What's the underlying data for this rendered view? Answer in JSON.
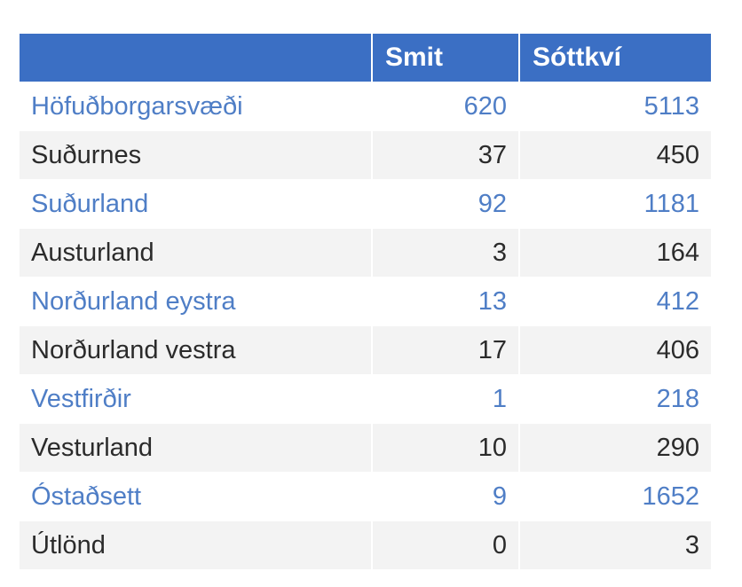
{
  "chart_data": {
    "type": "table",
    "columns": [
      "",
      "Smit",
      "Sóttkví"
    ],
    "rows": [
      {
        "region": "Höfuðborgarsvæði",
        "smit": 620,
        "sottkvi": 5113
      },
      {
        "region": "Suðurnes",
        "smit": 37,
        "sottkvi": 450
      },
      {
        "region": "Suðurland",
        "smit": 92,
        "sottkvi": 1181
      },
      {
        "region": "Austurland",
        "smit": 3,
        "sottkvi": 164
      },
      {
        "region": "Norðurland eystra",
        "smit": 13,
        "sottkvi": 412
      },
      {
        "region": "Norðurland vestra",
        "smit": 17,
        "sottkvi": 406
      },
      {
        "region": "Vestfirðir",
        "smit": 1,
        "sottkvi": 218
      },
      {
        "region": "Vesturland",
        "smit": 10,
        "sottkvi": 290
      },
      {
        "region": "Óstaðsett",
        "smit": 9,
        "sottkvi": 1652
      },
      {
        "region": "Útlönd",
        "smit": 0,
        "sottkvi": 3
      }
    ]
  },
  "colors": {
    "header_background": "#3b6fc4",
    "header_text": "#ffffff",
    "odd_row_text": "#4f7ec6",
    "even_row_text": "#2b2b2b",
    "even_row_background": "#f3f3f3"
  }
}
